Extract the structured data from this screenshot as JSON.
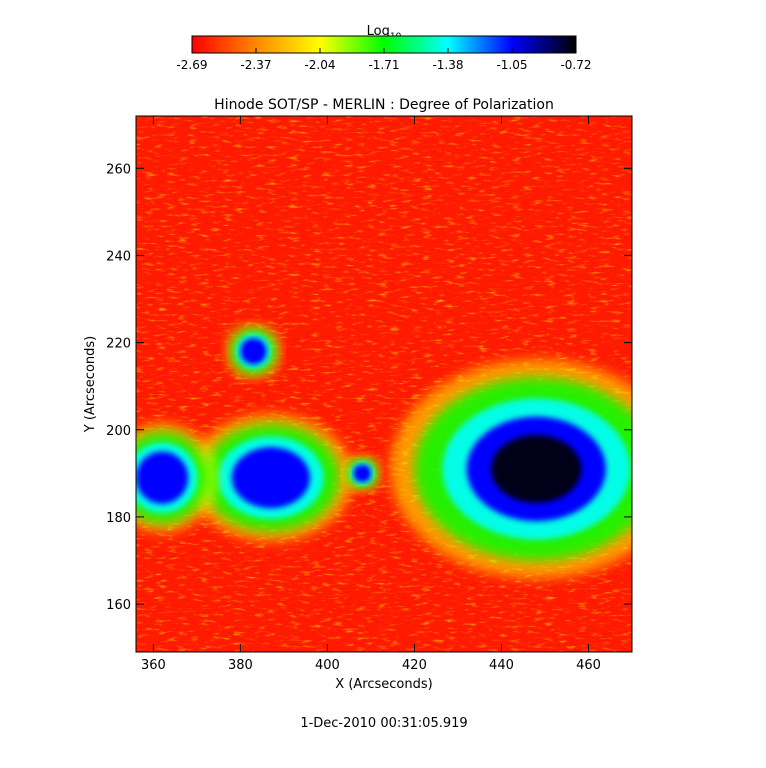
{
  "chart_data": {
    "type": "heatmap",
    "title": "Hinode SOT/SP - MERLIN : Degree of Polarization",
    "xlabel": "X (Arcseconds)",
    "ylabel": "Y (Arcseconds)",
    "xlim": [
      356,
      470
    ],
    "ylim": [
      149,
      272
    ],
    "x_ticks": [
      "360",
      "380",
      "400",
      "420",
      "440",
      "460"
    ],
    "y_ticks": [
      "160",
      "180",
      "200",
      "220",
      "240",
      "260"
    ],
    "colorbar": {
      "label_base": "Log",
      "label_sub": "10",
      "min": -2.69,
      "max": -0.72,
      "ticks": [
        "-2.69",
        "-2.37",
        "-2.04",
        "-1.71",
        "-1.38",
        "-1.05",
        "-0.72"
      ],
      "colormap": [
        "#ff0000",
        "#ff8800",
        "#ffff00",
        "#00ff00",
        "#00ffff",
        "#0000ff",
        "#000000"
      ]
    },
    "features": [
      {
        "kind": "sunspot",
        "x": 448,
        "y": 191,
        "rx": 16,
        "ry": 12,
        "value": -0.85
      },
      {
        "kind": "pore",
        "x": 387,
        "y": 189,
        "rx": 9,
        "ry": 7,
        "value": -1.0
      },
      {
        "kind": "pore",
        "x": 362,
        "y": 189,
        "rx": 6,
        "ry": 6,
        "value": -1.05
      },
      {
        "kind": "pore",
        "x": 383,
        "y": 218,
        "rx": 3,
        "ry": 3,
        "value": -1.1
      },
      {
        "kind": "pore",
        "x": 408,
        "y": 190,
        "rx": 2,
        "ry": 2,
        "value": -1.2
      }
    ],
    "footer": "1-Dec-2010 00:31:05.919"
  }
}
